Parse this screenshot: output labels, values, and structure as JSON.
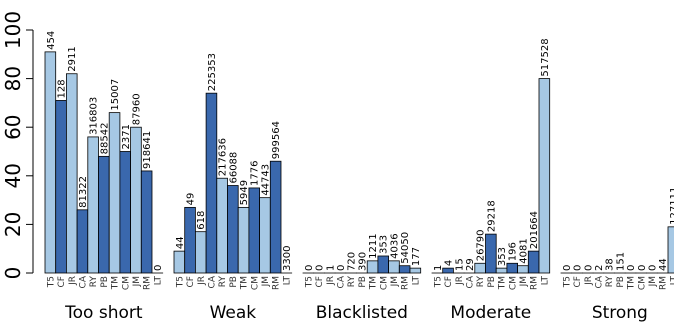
{
  "chart_data": {
    "type": "bar",
    "title": "",
    "xlabel": "",
    "ylabel": "",
    "ylim": [
      0,
      100
    ],
    "yticks": [
      0,
      20,
      40,
      60,
      80,
      100
    ],
    "grid": false,
    "colors": {
      "light": "#a6c8e4",
      "dark": "#3a68ad",
      "axis": "#000000"
    },
    "categories": [
      "T5",
      "CF",
      "JR",
      "CA",
      "RY",
      "PB",
      "TM",
      "CM",
      "JM",
      "RM",
      "LT"
    ],
    "groups": [
      {
        "name": "Too short",
        "values": [
          91,
          71,
          82,
          26,
          56,
          48,
          66,
          50,
          60,
          42,
          0
        ],
        "labels": [
          "454",
          "128",
          "2911",
          "81322",
          "316803",
          "88542",
          "15007",
          "2371",
          "87960",
          "918641",
          "0"
        ]
      },
      {
        "name": "Weak",
        "values": [
          9,
          27,
          17,
          74,
          39,
          36,
          27,
          35,
          31,
          46,
          0
        ],
        "labels": [
          "44",
          "49",
          "618",
          "225353",
          "217636",
          "66088",
          "5949",
          "1776",
          "44743",
          "999564",
          "3300"
        ]
      },
      {
        "name": "Blacklisted",
        "values": [
          0,
          0,
          0,
          0,
          0,
          0,
          5,
          7,
          5,
          3,
          2
        ],
        "labels": [
          "0",
          "0",
          "1",
          "0",
          "720",
          "390",
          "1211",
          "353",
          "4036",
          "54050",
          "177"
        ]
      },
      {
        "name": "Moderate",
        "values": [
          0,
          2,
          0,
          0,
          4,
          16,
          2,
          4,
          3,
          9,
          80
        ],
        "labels": [
          "1",
          "4",
          "15",
          "29",
          "26790",
          "29218",
          "353",
          "196",
          "4081",
          "201664",
          "517528"
        ]
      },
      {
        "name": "Strong",
        "values": [
          0,
          0,
          0,
          0,
          0,
          0,
          0,
          0,
          0,
          0,
          19
        ],
        "labels": [
          "0",
          "0",
          "0",
          "2",
          "38",
          "151",
          "0",
          "0",
          "0",
          "44",
          "127111"
        ]
      }
    ]
  }
}
